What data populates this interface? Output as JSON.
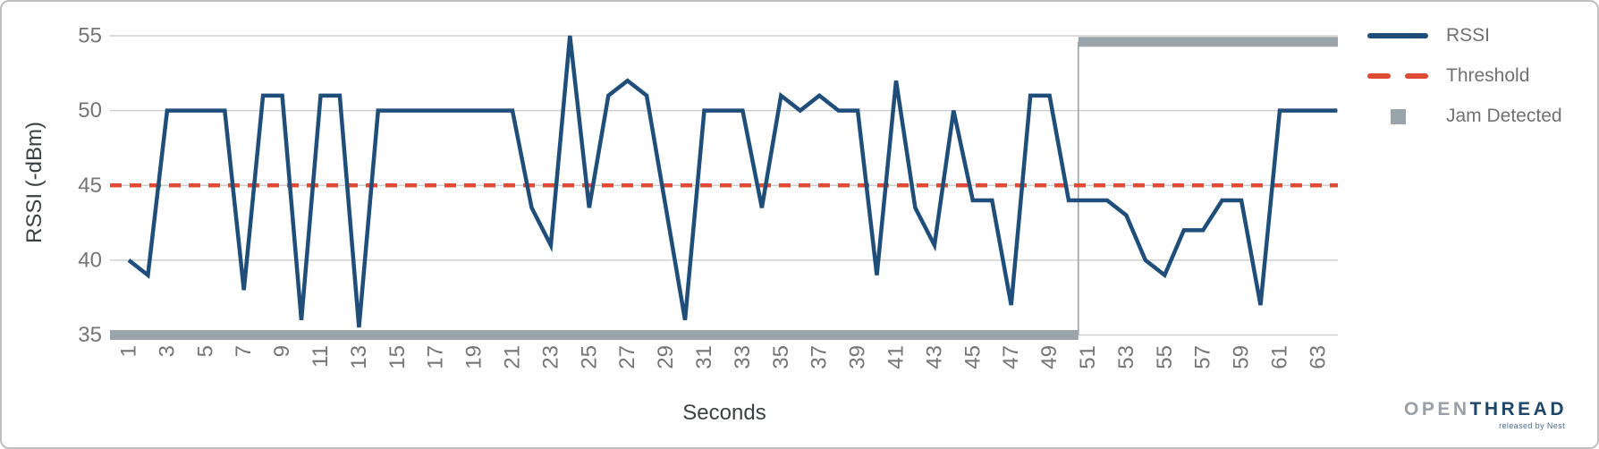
{
  "chart_data": {
    "type": "line",
    "title": "",
    "xlabel": "Seconds",
    "ylabel": "RSSI (-dBm)",
    "grid": true,
    "legend_position": "right-outside",
    "ylim": [
      33.5,
      56.5
    ],
    "yticks": [
      55,
      50,
      45,
      40,
      35
    ],
    "xticks": [
      1,
      3,
      5,
      7,
      9,
      11,
      13,
      15,
      17,
      19,
      21,
      23,
      25,
      27,
      29,
      31,
      33,
      35,
      37,
      39,
      41,
      43,
      45,
      47,
      49,
      51,
      53,
      55,
      57,
      59,
      61,
      63
    ],
    "x": [
      1,
      2,
      3,
      4,
      5,
      6,
      7,
      8,
      9,
      10,
      11,
      12,
      13,
      14,
      15,
      16,
      17,
      18,
      19,
      20,
      21,
      22,
      23,
      24,
      25,
      26,
      27,
      28,
      29,
      30,
      31,
      32,
      33,
      34,
      35,
      36,
      37,
      38,
      39,
      40,
      41,
      42,
      43,
      44,
      45,
      46,
      47,
      48,
      49,
      50,
      51,
      52,
      53,
      54,
      55,
      56,
      57,
      58,
      59,
      60,
      61,
      62,
      63,
      64
    ],
    "series": [
      {
        "name": "RSSI",
        "type": "line",
        "color": "#1e4e79",
        "values": [
          40,
          39,
          50,
          50,
          50,
          50,
          38,
          51,
          51,
          36,
          51,
          51,
          35.5,
          50,
          50,
          50,
          50,
          50,
          50,
          50,
          50,
          43.5,
          41,
          55,
          43.5,
          51,
          52,
          51,
          43.5,
          36,
          50,
          50,
          50,
          43.5,
          51,
          50,
          51,
          50,
          50,
          39,
          52,
          43.5,
          41,
          50,
          44,
          44,
          37,
          51,
          51,
          44,
          44,
          44,
          43,
          40,
          39,
          42,
          42,
          44,
          44,
          37,
          50,
          50,
          50,
          50
        ]
      },
      {
        "name": "Threshold",
        "type": "horizontal-dashed-line",
        "color": "#e04b35",
        "value": 45
      },
      {
        "name": "Jam Detected",
        "type": "thick-step",
        "color": "#9aa4ab",
        "low_value": 35,
        "high_value": 54.6,
        "transition_second": 50.5
      }
    ]
  },
  "axes": {
    "x_title": "Seconds",
    "y_title": "RSSI (-dBm)"
  },
  "legend": {
    "items": [
      {
        "label": "RSSI",
        "swatch": "solid-line",
        "color": "#1e4e79"
      },
      {
        "label": "Threshold",
        "swatch": "dashed-line",
        "color": "#e04b35"
      },
      {
        "label": "Jam Detected",
        "swatch": "square",
        "color": "#9aa4ab"
      }
    ]
  },
  "logo": {
    "part1": "OPEN",
    "part2": "THREAD",
    "tagline": "released by Nest"
  },
  "colors": {
    "rssi_line": "#1e4e79",
    "threshold_line": "#e04b35",
    "jam_bar": "#9aa4ab",
    "gridline": "#cfcfcf",
    "tick_label": "#757575",
    "axis_title": "#3d4043",
    "frame_border": "#bfbfbf"
  }
}
